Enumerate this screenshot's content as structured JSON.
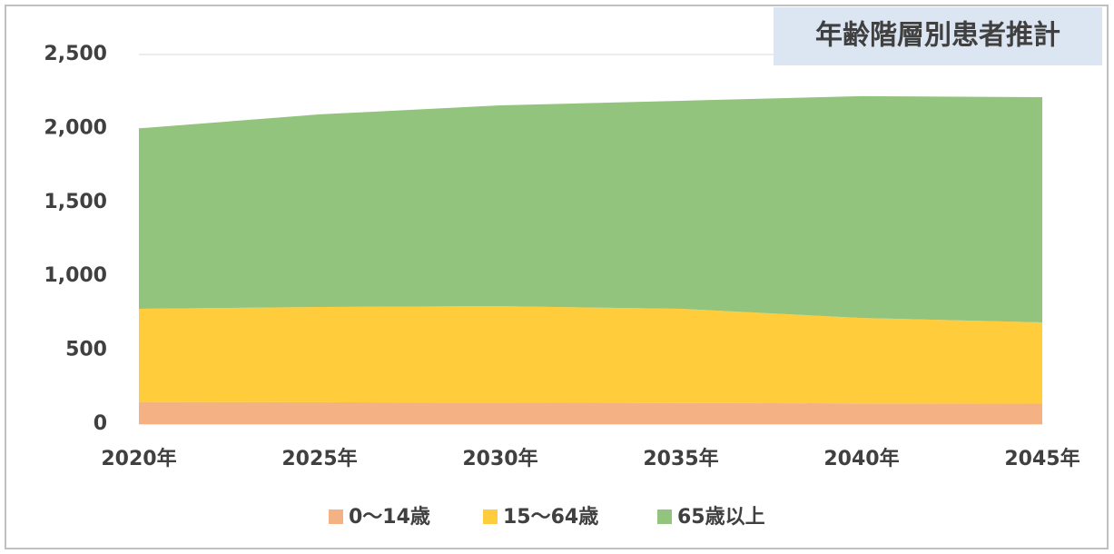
{
  "chart_data": {
    "type": "area",
    "title": "年齢階層別患者推計",
    "categories": [
      "2020年",
      "2025年",
      "2030年",
      "2035年",
      "2040年",
      "2045年"
    ],
    "series": [
      {
        "name": "0～14歳",
        "color": "#f4b183",
        "values": [
          150,
          148,
          145,
          143,
          140,
          138
        ]
      },
      {
        "name": "15～64歳",
        "color": "#ffcd3c",
        "values": [
          630,
          644,
          653,
          637,
          578,
          550
        ]
      },
      {
        "name": "65歳以上",
        "color": "#93c47d",
        "values": [
          1220,
          1303,
          1358,
          1407,
          1500,
          1523
        ]
      }
    ],
    "stacked": true,
    "ylim": [
      0,
      2500
    ],
    "yticks": [
      0,
      500,
      {
        "value": 1000,
        "label": "1,000"
      },
      {
        "value": 1500,
        "label": "1,500"
      },
      {
        "value": 2000,
        "label": "2,000"
      },
      {
        "value": 2500,
        "label": "2,500"
      }
    ],
    "grid": true,
    "legend": "bottom"
  }
}
